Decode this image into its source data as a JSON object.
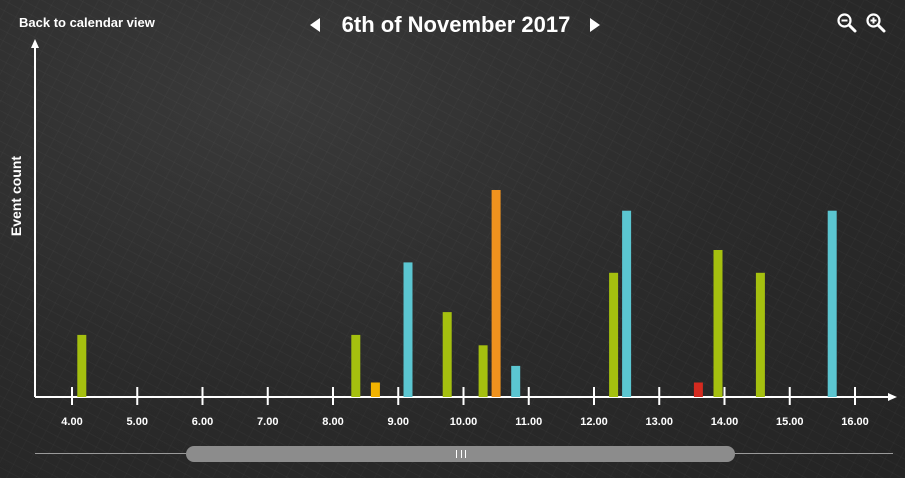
{
  "header": {
    "back_label": "Back to calendar view",
    "date_title": "6th of November 2017",
    "prev_icon": "triangle-left-icon",
    "next_icon": "triangle-right-icon",
    "zoom_out_icon": "zoom-out-icon",
    "zoom_in_icon": "zoom-in-icon"
  },
  "chart_data": {
    "type": "bar",
    "ylabel": "Event count",
    "xlabel": "",
    "x_ticks": [
      "4.00",
      "5.00",
      "6.00",
      "7.00",
      "8.00",
      "9.00",
      "10.00",
      "11.00",
      "12.00",
      "13.00",
      "14.00",
      "15.00",
      "16.00"
    ],
    "xlim": [
      3.5,
      16.4
    ],
    "ylim": [
      0,
      10
    ],
    "grid": false,
    "colors": {
      "green": "#a5c00f",
      "yellow": "#f2b300",
      "cyan": "#5bc6d1",
      "orange": "#f0921e",
      "red": "#d42a1f"
    },
    "bars": [
      {
        "x": 4.15,
        "value": 3.0,
        "color": "green"
      },
      {
        "x": 8.35,
        "value": 3.0,
        "color": "green"
      },
      {
        "x": 8.65,
        "value": 0.7,
        "color": "yellow"
      },
      {
        "x": 9.15,
        "value": 6.5,
        "color": "cyan"
      },
      {
        "x": 9.75,
        "value": 4.1,
        "color": "green"
      },
      {
        "x": 10.3,
        "value": 2.5,
        "color": "green"
      },
      {
        "x": 10.5,
        "value": 10.0,
        "color": "orange"
      },
      {
        "x": 10.8,
        "value": 1.5,
        "color": "cyan"
      },
      {
        "x": 12.3,
        "value": 6.0,
        "color": "green"
      },
      {
        "x": 12.5,
        "value": 9.0,
        "color": "cyan"
      },
      {
        "x": 13.6,
        "value": 0.7,
        "color": "red"
      },
      {
        "x": 13.9,
        "value": 7.1,
        "color": "green"
      },
      {
        "x": 14.55,
        "value": 6.0,
        "color": "green"
      },
      {
        "x": 15.65,
        "value": 9.0,
        "color": "cyan"
      }
    ]
  },
  "scrollbar": {
    "grip_icon": "grip-lines-icon"
  }
}
